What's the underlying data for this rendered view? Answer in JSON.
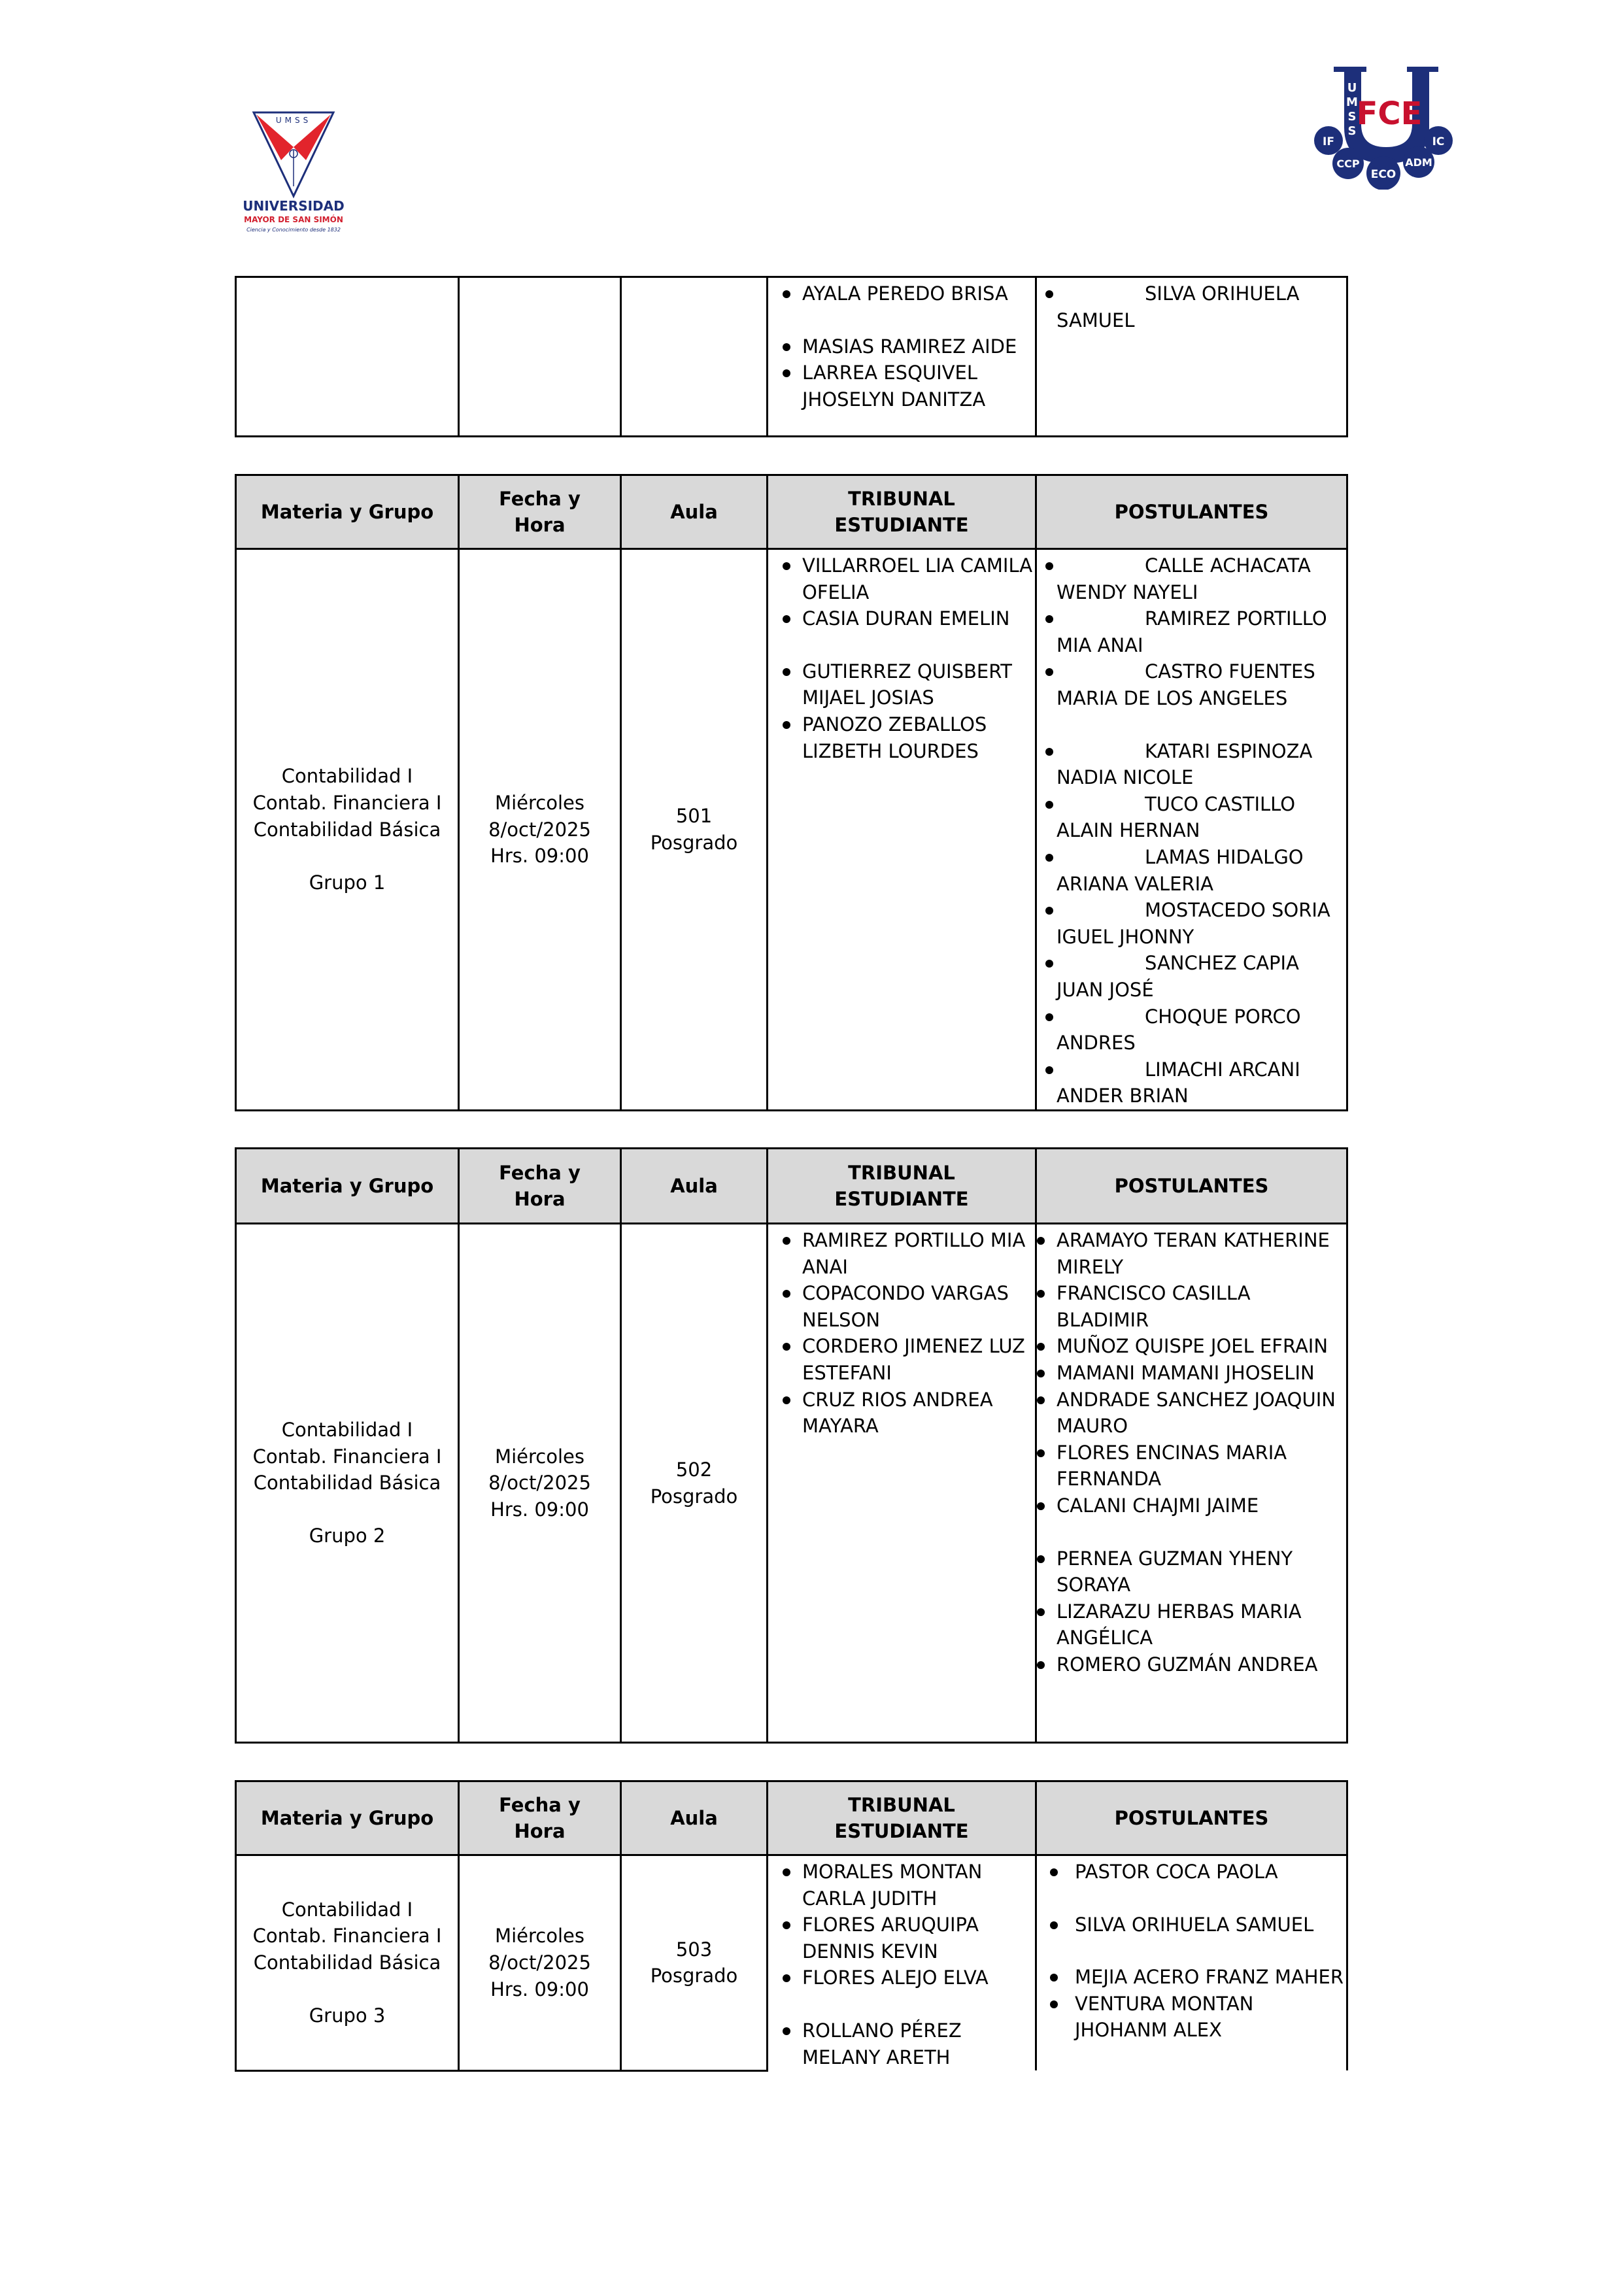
{
  "logos": {
    "left": {
      "text": "UMSS",
      "name": "UNIVERSIDAD",
      "subname": "MAYOR DE SAN SIMÓN",
      "motto": "Ciencia y Conocimiento desde 1832"
    },
    "right": {
      "text": "UMSS FCE",
      "circles": [
        "IF",
        "CCP",
        "ECO",
        "ADM",
        "IC"
      ]
    }
  },
  "colors": {
    "header_bg": "#d9d9d9",
    "border": "#000000",
    "brand_blue": "#1d2f7a",
    "brand_red": "#d2202f"
  },
  "headers": [
    "Materia y Grupo",
    "Fecha y Hora",
    "Aula",
    "TRIBUNAL ESTUDIANTE",
    "POSTULANTES"
  ],
  "tables": [
    {
      "header": false,
      "materia": [],
      "fecha": [],
      "aula": [],
      "tribunal": [
        "AYALA PEREDO BRISA",
        "MASIAS RAMIREZ AIDE",
        "LARREA ESQUIVEL JHOSELYN DANITZA"
      ],
      "postulantes": [
        "SILVA ORIHUELA SAMUEL"
      ]
    },
    {
      "header": true,
      "materia": [
        "Contabilidad I",
        "Contab. Financiera I",
        "Contabilidad Básica",
        "",
        "Grupo 1"
      ],
      "fecha": [
        "Miércoles",
        "8/oct/2025",
        "Hrs. 09:00"
      ],
      "aula": [
        "501",
        "Posgrado"
      ],
      "tribunal": [
        "VILLARROEL LIA CAMILA OFELIA",
        "CASIA DURAN EMELIN",
        "GUTIERREZ QUISBERT MIJAEL JOSIAS",
        "PANOZO ZEBALLOS LIZBETH LOURDES"
      ],
      "postulantes": [
        "CALLE ACHACATA WENDY NAYELI",
        "RAMIREZ PORTILLO  MIA ANAI",
        "CASTRO FUENTES MARIA DE LOS ANGELES",
        "KATARI ESPINOZA NADIA NICOLE",
        "TUCO CASTILLO ALAIN HERNAN",
        "LAMAS HIDALGO ARIANA VALERIA",
        "MOSTACEDO SORIA  IGUEL JHONNY",
        "SANCHEZ CAPIA JUAN JOSÉ",
        "CHOQUE  PORCO ANDRES",
        "LIMACHI ARCANI ANDER BRIAN"
      ]
    },
    {
      "header": true,
      "materia": [
        "Contabilidad I",
        "Contab. Financiera I",
        "Contabilidad Básica",
        "",
        "Grupo 2"
      ],
      "fecha": [
        "Miércoles",
        "8/oct/2025",
        "Hrs. 09:00"
      ],
      "aula": [
        "502",
        "Posgrado"
      ],
      "tribunal": [
        "RAMIREZ PORTILLO MIA ANAI",
        "COPACONDO VARGAS NELSON",
        "CORDERO JIMENEZ LUZ ESTEFANI",
        "CRUZ RIOS ANDREA MAYARA"
      ],
      "postulantes": [
        "ARAMAYO TERAN KATHERINE MIRELY",
        "FRANCISCO CASILLA BLADIMIR",
        "MUÑOZ QUISPE  JOEL EFRAIN",
        "MAMANI  MAMANI JHOSELIN",
        "ANDRADE  SANCHEZ JOAQUIN MAURO",
        "FLORES  ENCINAS MARIA FERNANDA",
        "CALANI CHAJMI JAIME",
        "PERNEA  GUZMAN  YHENY SORAYA",
        "LIZARAZU HERBAS  MARIA ANGÉLICA",
        "ROMERO  GUZMÁN ANDREA"
      ]
    },
    {
      "header": true,
      "materia": [
        "Contabilidad I",
        "Contab. Financiera I",
        "Contabilidad Básica",
        "",
        "Grupo 3"
      ],
      "fecha": [
        "Miércoles",
        "8/oct/2025",
        "Hrs. 09:00"
      ],
      "aula": [
        "503",
        "Posgrado"
      ],
      "tribunal": [
        "MORALES MONTAN CARLA JUDITH",
        "FLORES ARUQUIPA DENNIS KEVIN",
        "FLORES ALEJO ELVA",
        "ROLLANO PÉREZ MELANY ARETH"
      ],
      "postulantes": [
        "PASTOR COCA  PAOLA",
        "SILVA ORIHUELA SAMUEL",
        "MEJIA ACERO FRANZ MAHER",
        "VENTURA  MONTAN JHOHANM ALEX"
      ]
    }
  ]
}
